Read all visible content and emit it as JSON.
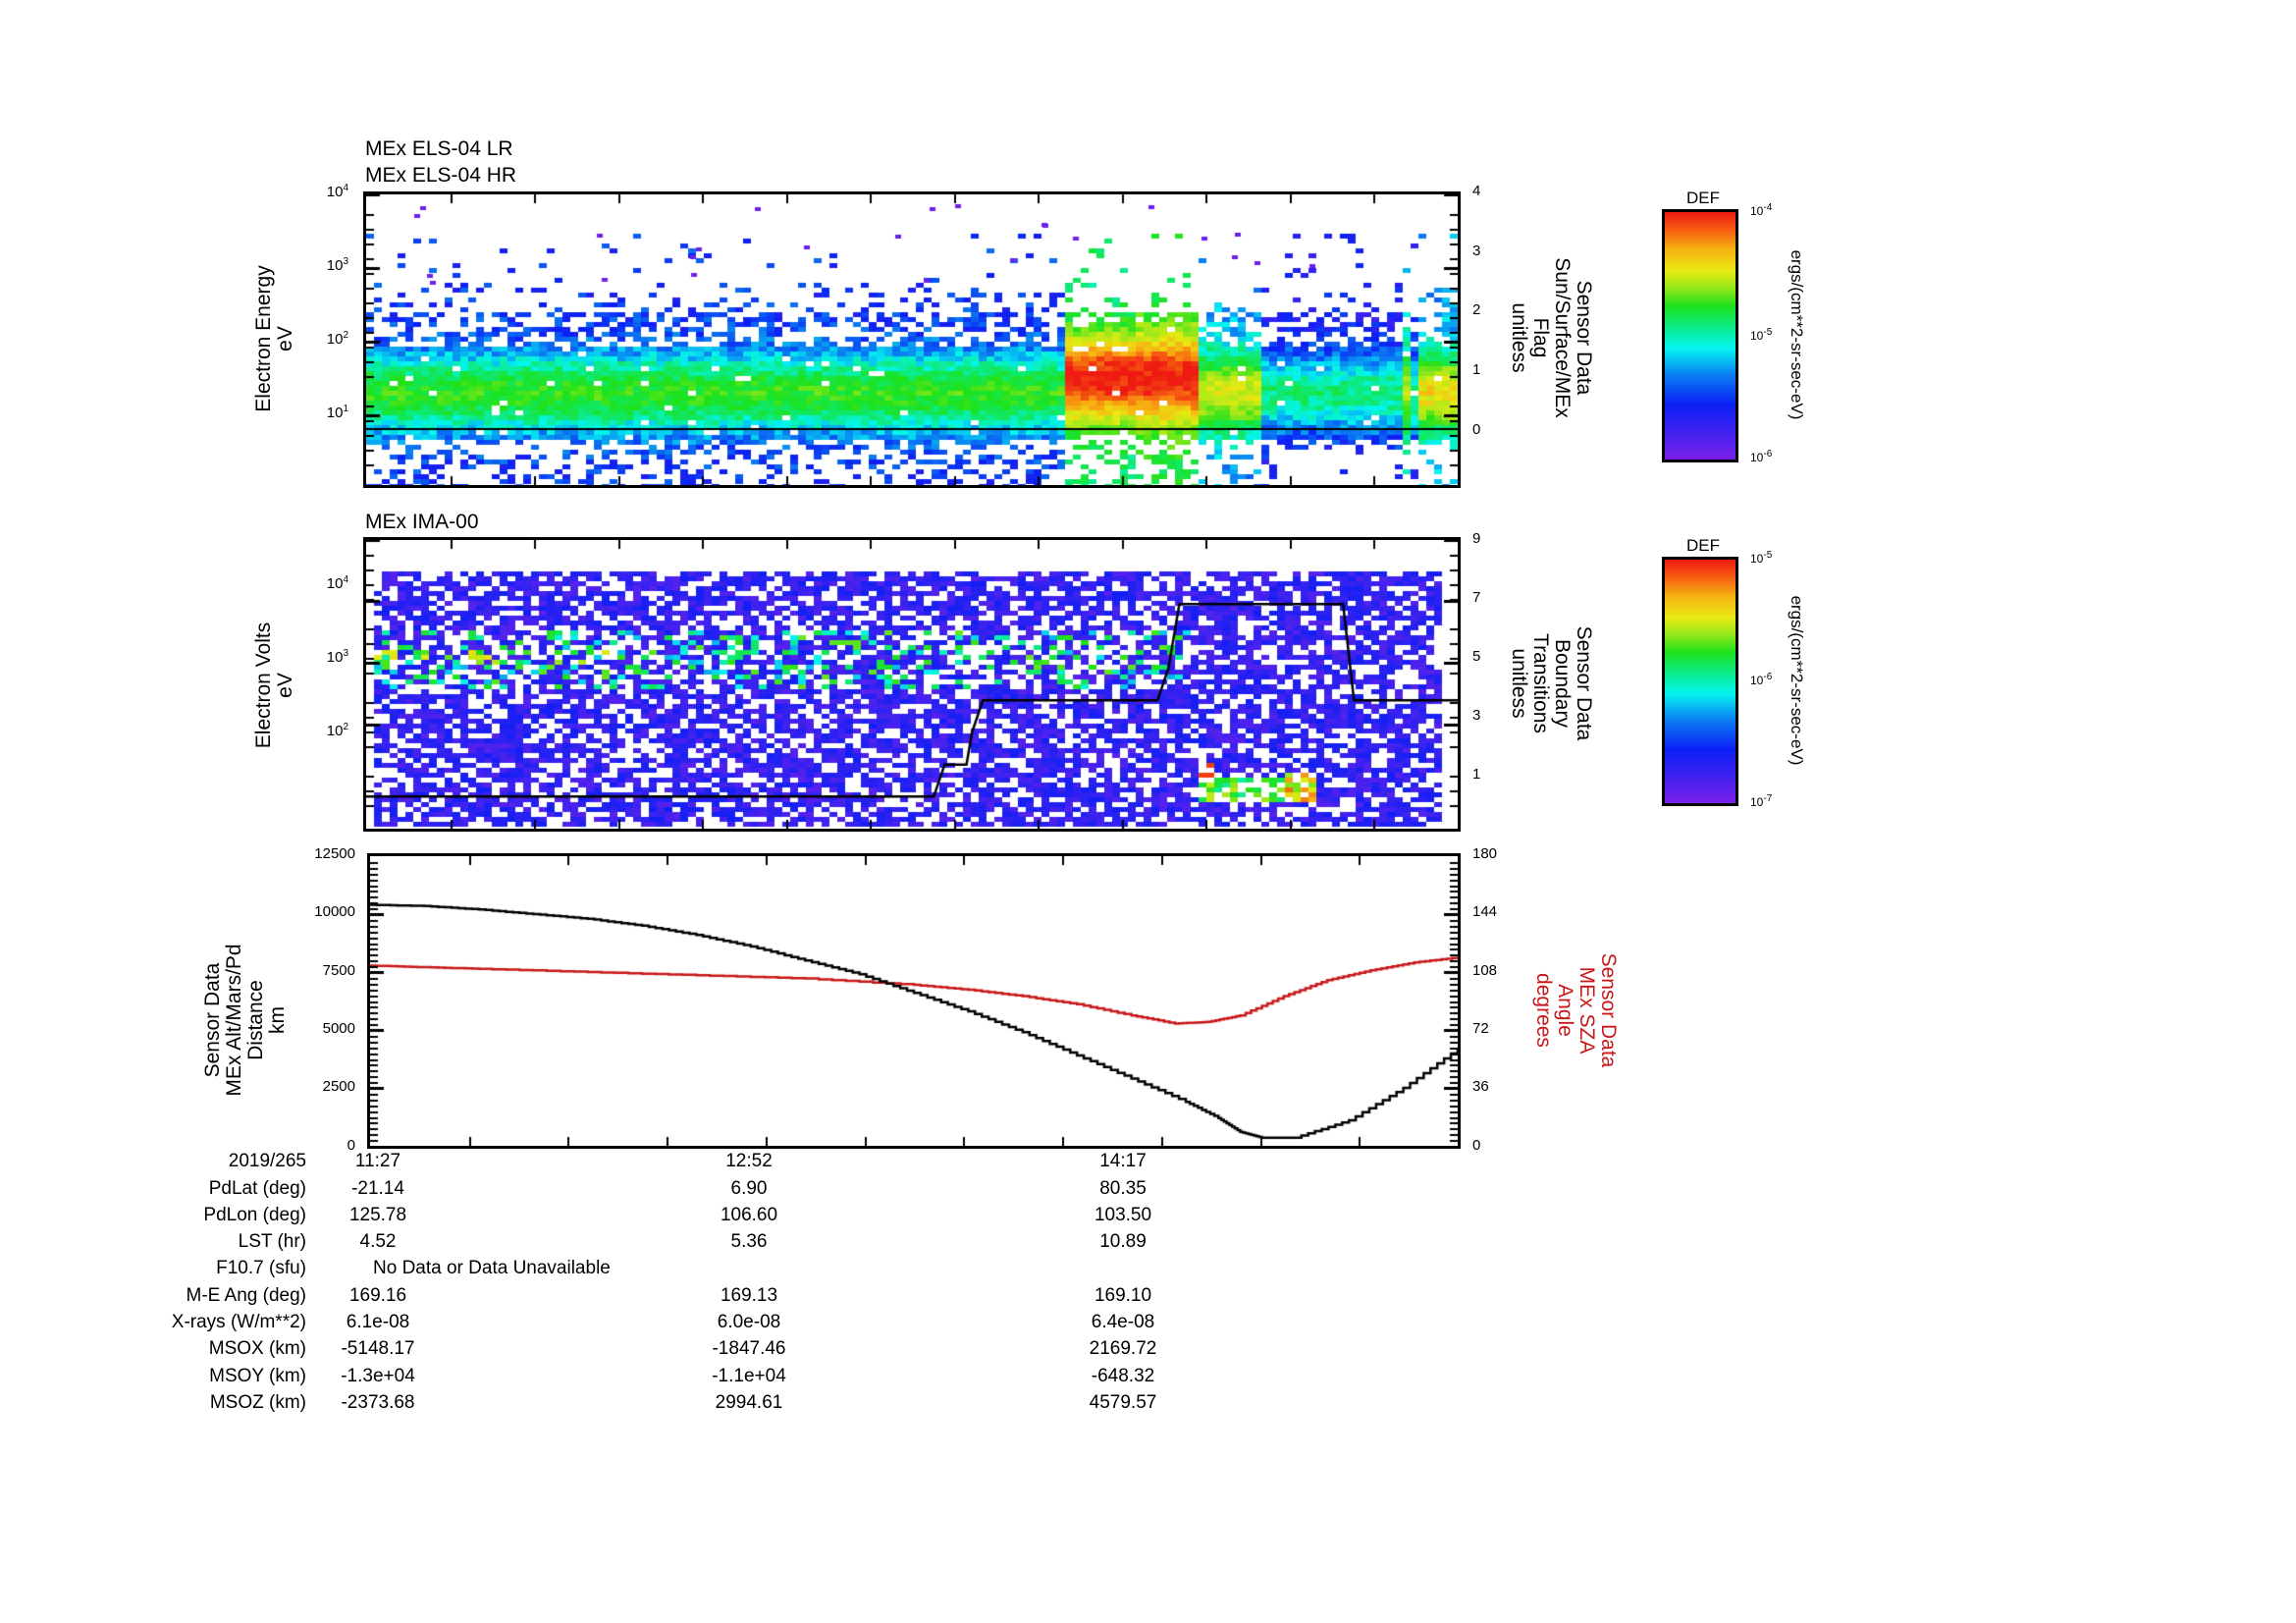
{
  "panels": {
    "els": {
      "title_lines": [
        "MEx ELS-04 LR",
        "MEx ELS-04 HR"
      ],
      "ylabel_left": [
        "Electron Energy",
        "eV"
      ],
      "yticks_left": [
        {
          "base": "10",
          "exp": "4"
        },
        {
          "base": "10",
          "exp": "3"
        },
        {
          "base": "10",
          "exp": "2"
        },
        {
          "base": "10",
          "exp": "1"
        }
      ],
      "ylabel_right": [
        "Sensor Data",
        "Sun/Surface/MEx",
        "Flag",
        "unitless"
      ],
      "yticks_right": [
        "4",
        "3",
        "2",
        "1",
        "0"
      ],
      "colorbar": {
        "title": "DEF",
        "top": {
          "base": "10",
          "exp": "-4"
        },
        "mid": {
          "base": "10",
          "exp": "-5"
        },
        "bottom": {
          "base": "10",
          "exp": "-6"
        },
        "units": "ergs/(cm**2-sr-sec-eV)"
      }
    },
    "ima": {
      "title": "MEx IMA-00",
      "ylabel_left": [
        "Electron Volts",
        "eV"
      ],
      "yticks_left": [
        {
          "base": "10",
          "exp": "4"
        },
        {
          "base": "10",
          "exp": "3"
        },
        {
          "base": "10",
          "exp": "2"
        }
      ],
      "ylabel_right": [
        "Sensor Data",
        "Boundary",
        "Transitions",
        "unitless"
      ],
      "yticks_right": [
        "9",
        "7",
        "5",
        "3",
        "1"
      ],
      "colorbar": {
        "title": "DEF",
        "top": {
          "base": "10",
          "exp": "-5"
        },
        "mid": {
          "base": "10",
          "exp": "-6"
        },
        "bottom": {
          "base": "10",
          "exp": "-7"
        },
        "units": "ergs/(cm**2-sr-sec-eV)"
      }
    },
    "orbit": {
      "ylabel_left": [
        "Sensor Data",
        "MEx Alt/Mars/Pd",
        "Distance",
        "km"
      ],
      "yticks_left": [
        "12500",
        "10000",
        "7500",
        "5000",
        "2500",
        "0"
      ],
      "ylabel_right": [
        "Sensor Data",
        "MEx SZA",
        "Angle",
        "degrees"
      ],
      "yticks_right": [
        "180",
        "144",
        "108",
        "72",
        "36",
        "0"
      ]
    }
  },
  "ephemeris": {
    "date": "2019/265",
    "times": [
      "11:27",
      "12:52",
      "14:17"
    ],
    "rows": [
      {
        "label": "PdLat (deg)",
        "values": [
          "-21.14",
          "6.90",
          "80.35"
        ]
      },
      {
        "label": "PdLon (deg)",
        "values": [
          "125.78",
          "106.60",
          "103.50"
        ]
      },
      {
        "label": "LST (hr)",
        "values": [
          "4.52",
          "5.36",
          "10.89"
        ]
      },
      {
        "label": "F10.7 (sfu)",
        "note": "No Data or Data Unavailable",
        "values": [
          "",
          "",
          ""
        ]
      },
      {
        "label": "M-E Ang (deg)",
        "values": [
          "169.16",
          "169.13",
          "169.10"
        ]
      },
      {
        "label": "X-rays (W/m**2)",
        "values": [
          "6.1e-08",
          "6.0e-08",
          "6.4e-08"
        ]
      },
      {
        "label": "MSOX (km)",
        "values": [
          "-5148.17",
          "-1847.46",
          "2169.72"
        ]
      },
      {
        "label": "MSOY (km)",
        "values": [
          "-1.3e+04",
          "-1.1e+04",
          "-648.32"
        ]
      },
      {
        "label": "MSOZ (km)",
        "values": [
          "-2373.68",
          "2994.61",
          "4579.57"
        ]
      }
    ]
  },
  "colors": {
    "altitude": "#000000",
    "sza": "#c8181a",
    "axis": "#000000"
  },
  "chart_data": [
    {
      "type": "heatmap",
      "title": "MEx ELS-04 LR / MEx ELS-04 HR",
      "ylabel": "Electron Energy (eV)",
      "yscale": "log",
      "ylim": [
        3,
        10000
      ],
      "y2label": "Sensor Data Sun/Surface/MEx Flag (unitless)",
      "y2lim": [
        -1,
        4
      ],
      "colorbar": {
        "label": "DEF ergs/(cm**2-sr-sec-eV)",
        "range": [
          1e-06,
          0.0001
        ],
        "scale": "log"
      },
      "x_fraction_features": [
        {
          "x": [
            0.0,
            0.62
          ],
          "energy_band_eV": [
            5,
            60
          ],
          "level": "blue-green (~3e-6 to 1e-5)"
        },
        {
          "x": [
            0.64,
            0.76
          ],
          "energy_band_eV": [
            15,
            60
          ],
          "level": "red (~1e-4) — peak region"
        },
        {
          "x": [
            0.76,
            0.82
          ],
          "energy_band_eV": [
            8,
            40
          ],
          "level": "green-yellow"
        },
        {
          "x": [
            0.82,
            0.96
          ],
          "energy_band_eV": [
            8,
            60
          ],
          "level": "blue-cyan"
        },
        {
          "x": [
            0.96,
            1.0
          ],
          "energy_band_eV": [
            10,
            50
          ],
          "level": "green-yellow"
        }
      ],
      "flag_line": {
        "x": [
          0,
          0.83,
          0.84,
          1
        ],
        "y": [
          0,
          0,
          0,
          0
        ]
      }
    },
    {
      "type": "heatmap",
      "title": "MEx IMA-00",
      "ylabel": "Electron Volts (eV)",
      "yscale": "log",
      "ylim": [
        12,
        40000
      ],
      "y2label": "Sensor Data Boundary Transitions (unitless)",
      "y2lim": [
        0,
        9
      ],
      "colorbar": {
        "label": "DEF ergs/(cm**2-sr-sec-eV)",
        "range": [
          1e-07,
          1e-05
        ],
        "scale": "log"
      },
      "boundary_line": {
        "x": [
          0.0,
          0.52,
          0.53,
          0.55,
          0.555,
          0.565,
          0.57,
          0.725,
          0.735,
          0.745,
          0.895,
          0.905,
          1.0
        ],
        "y": [
          1,
          1,
          2,
          2,
          3,
          4,
          4,
          4,
          5,
          7,
          7,
          4,
          4
        ]
      }
    },
    {
      "type": "line",
      "xlabel": "Time (2019/265)",
      "x_ticks": [
        "11:27",
        "12:52",
        "14:17"
      ],
      "series": [
        {
          "name": "MEx Alt/Mars/Pd Distance (km)",
          "axis": "left",
          "color": "#000000",
          "x": [
            0.0,
            0.05,
            0.1,
            0.15,
            0.2,
            0.25,
            0.3,
            0.35,
            0.4,
            0.45,
            0.5,
            0.55,
            0.6,
            0.65,
            0.7,
            0.75,
            0.78,
            0.8,
            0.82,
            0.85,
            0.9,
            0.95,
            1.0
          ],
          "y": [
            10400,
            10350,
            10200,
            10000,
            9800,
            9500,
            9100,
            8600,
            8000,
            7400,
            6600,
            5800,
            4900,
            3900,
            2900,
            1900,
            1200,
            600,
            350,
            350,
            1100,
            2500,
            4200
          ]
        },
        {
          "name": "MEx SZA Angle (degrees)",
          "axis": "right",
          "color": "#c8181a",
          "x": [
            0.0,
            0.05,
            0.1,
            0.2,
            0.3,
            0.4,
            0.5,
            0.55,
            0.6,
            0.65,
            0.7,
            0.74,
            0.77,
            0.8,
            0.84,
            0.88,
            0.92,
            0.96,
            1.0
          ],
          "y": [
            112,
            111,
            110,
            108,
            106,
            104,
            100,
            97,
            93,
            88,
            81,
            76,
            77,
            81,
            93,
            103,
            109,
            114,
            117
          ]
        }
      ],
      "ylim": [
        0,
        12500
      ],
      "y2lim": [
        0,
        180
      ]
    }
  ]
}
